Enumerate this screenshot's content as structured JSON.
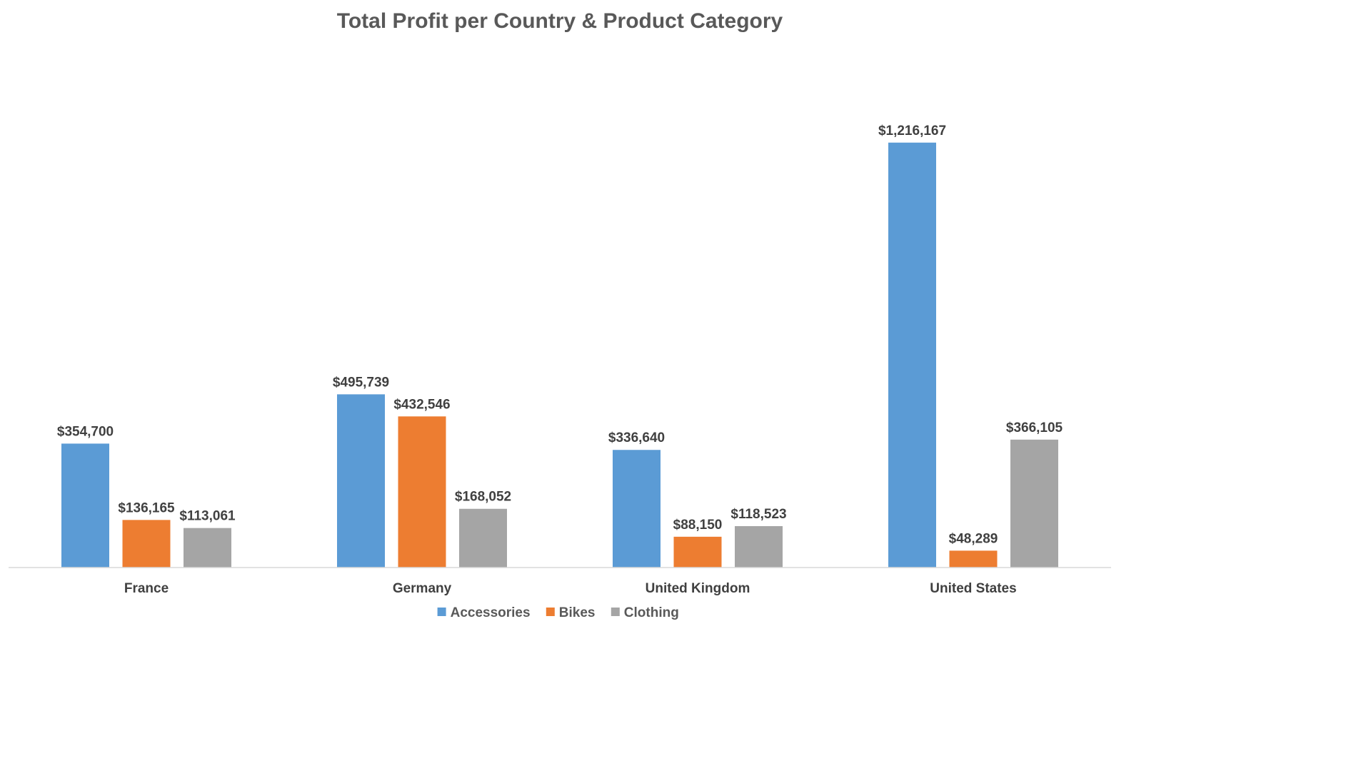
{
  "chart_data": {
    "type": "bar",
    "title": "Total Profit per Country & Product Category",
    "categories": [
      "France",
      "Germany",
      "United Kingdom",
      "United States"
    ],
    "series": [
      {
        "name": "Accessories",
        "color": "#5B9BD5",
        "values": [
          354700,
          495739,
          336640,
          1216167
        ],
        "labels": [
          "$354,700",
          "$495,739",
          "$336,640",
          "$1,216,167"
        ]
      },
      {
        "name": "Bikes",
        "color": "#ED7D31",
        "values": [
          136165,
          432546,
          88150,
          48289
        ],
        "labels": [
          "$136,165",
          "$432,546",
          "$88,150",
          "$48,289"
        ]
      },
      {
        "name": "Clothing",
        "color": "#A5A5A5",
        "values": [
          113061,
          168052,
          118523,
          366105
        ],
        "labels": [
          "$113,061",
          "$168,052",
          "$118,523",
          "$366,105"
        ]
      }
    ],
    "ylim": [
      0,
      1420000
    ],
    "grid": false,
    "legend": "bottom",
    "xlabel": "",
    "ylabel": ""
  }
}
